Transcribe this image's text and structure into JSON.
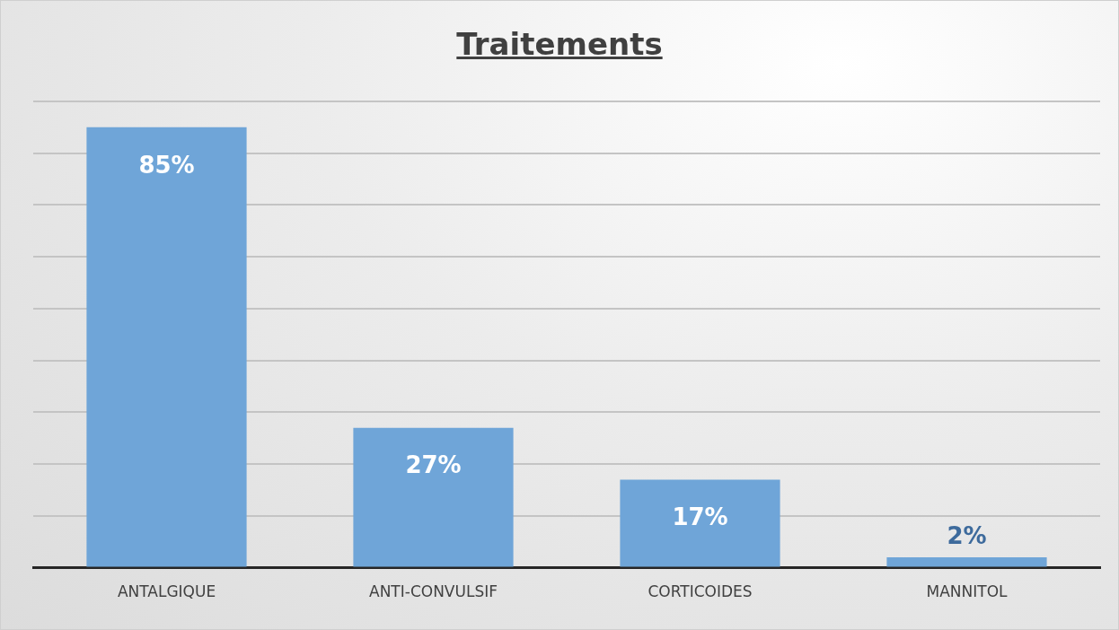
{
  "chart_data": {
    "type": "bar",
    "title": "Traitements",
    "categories": [
      "ANTALGIQUE",
      "ANTI-CONVULSIF",
      "CORTICOIDES",
      "MANNITOL"
    ],
    "values": [
      85,
      27,
      17,
      2
    ],
    "color": "#6fa5d8",
    "value_labels": [
      "85%",
      "27%",
      "17%",
      "2%"
    ],
    "grid": "y",
    "tick_labels": "x",
    "legend": false
  }
}
